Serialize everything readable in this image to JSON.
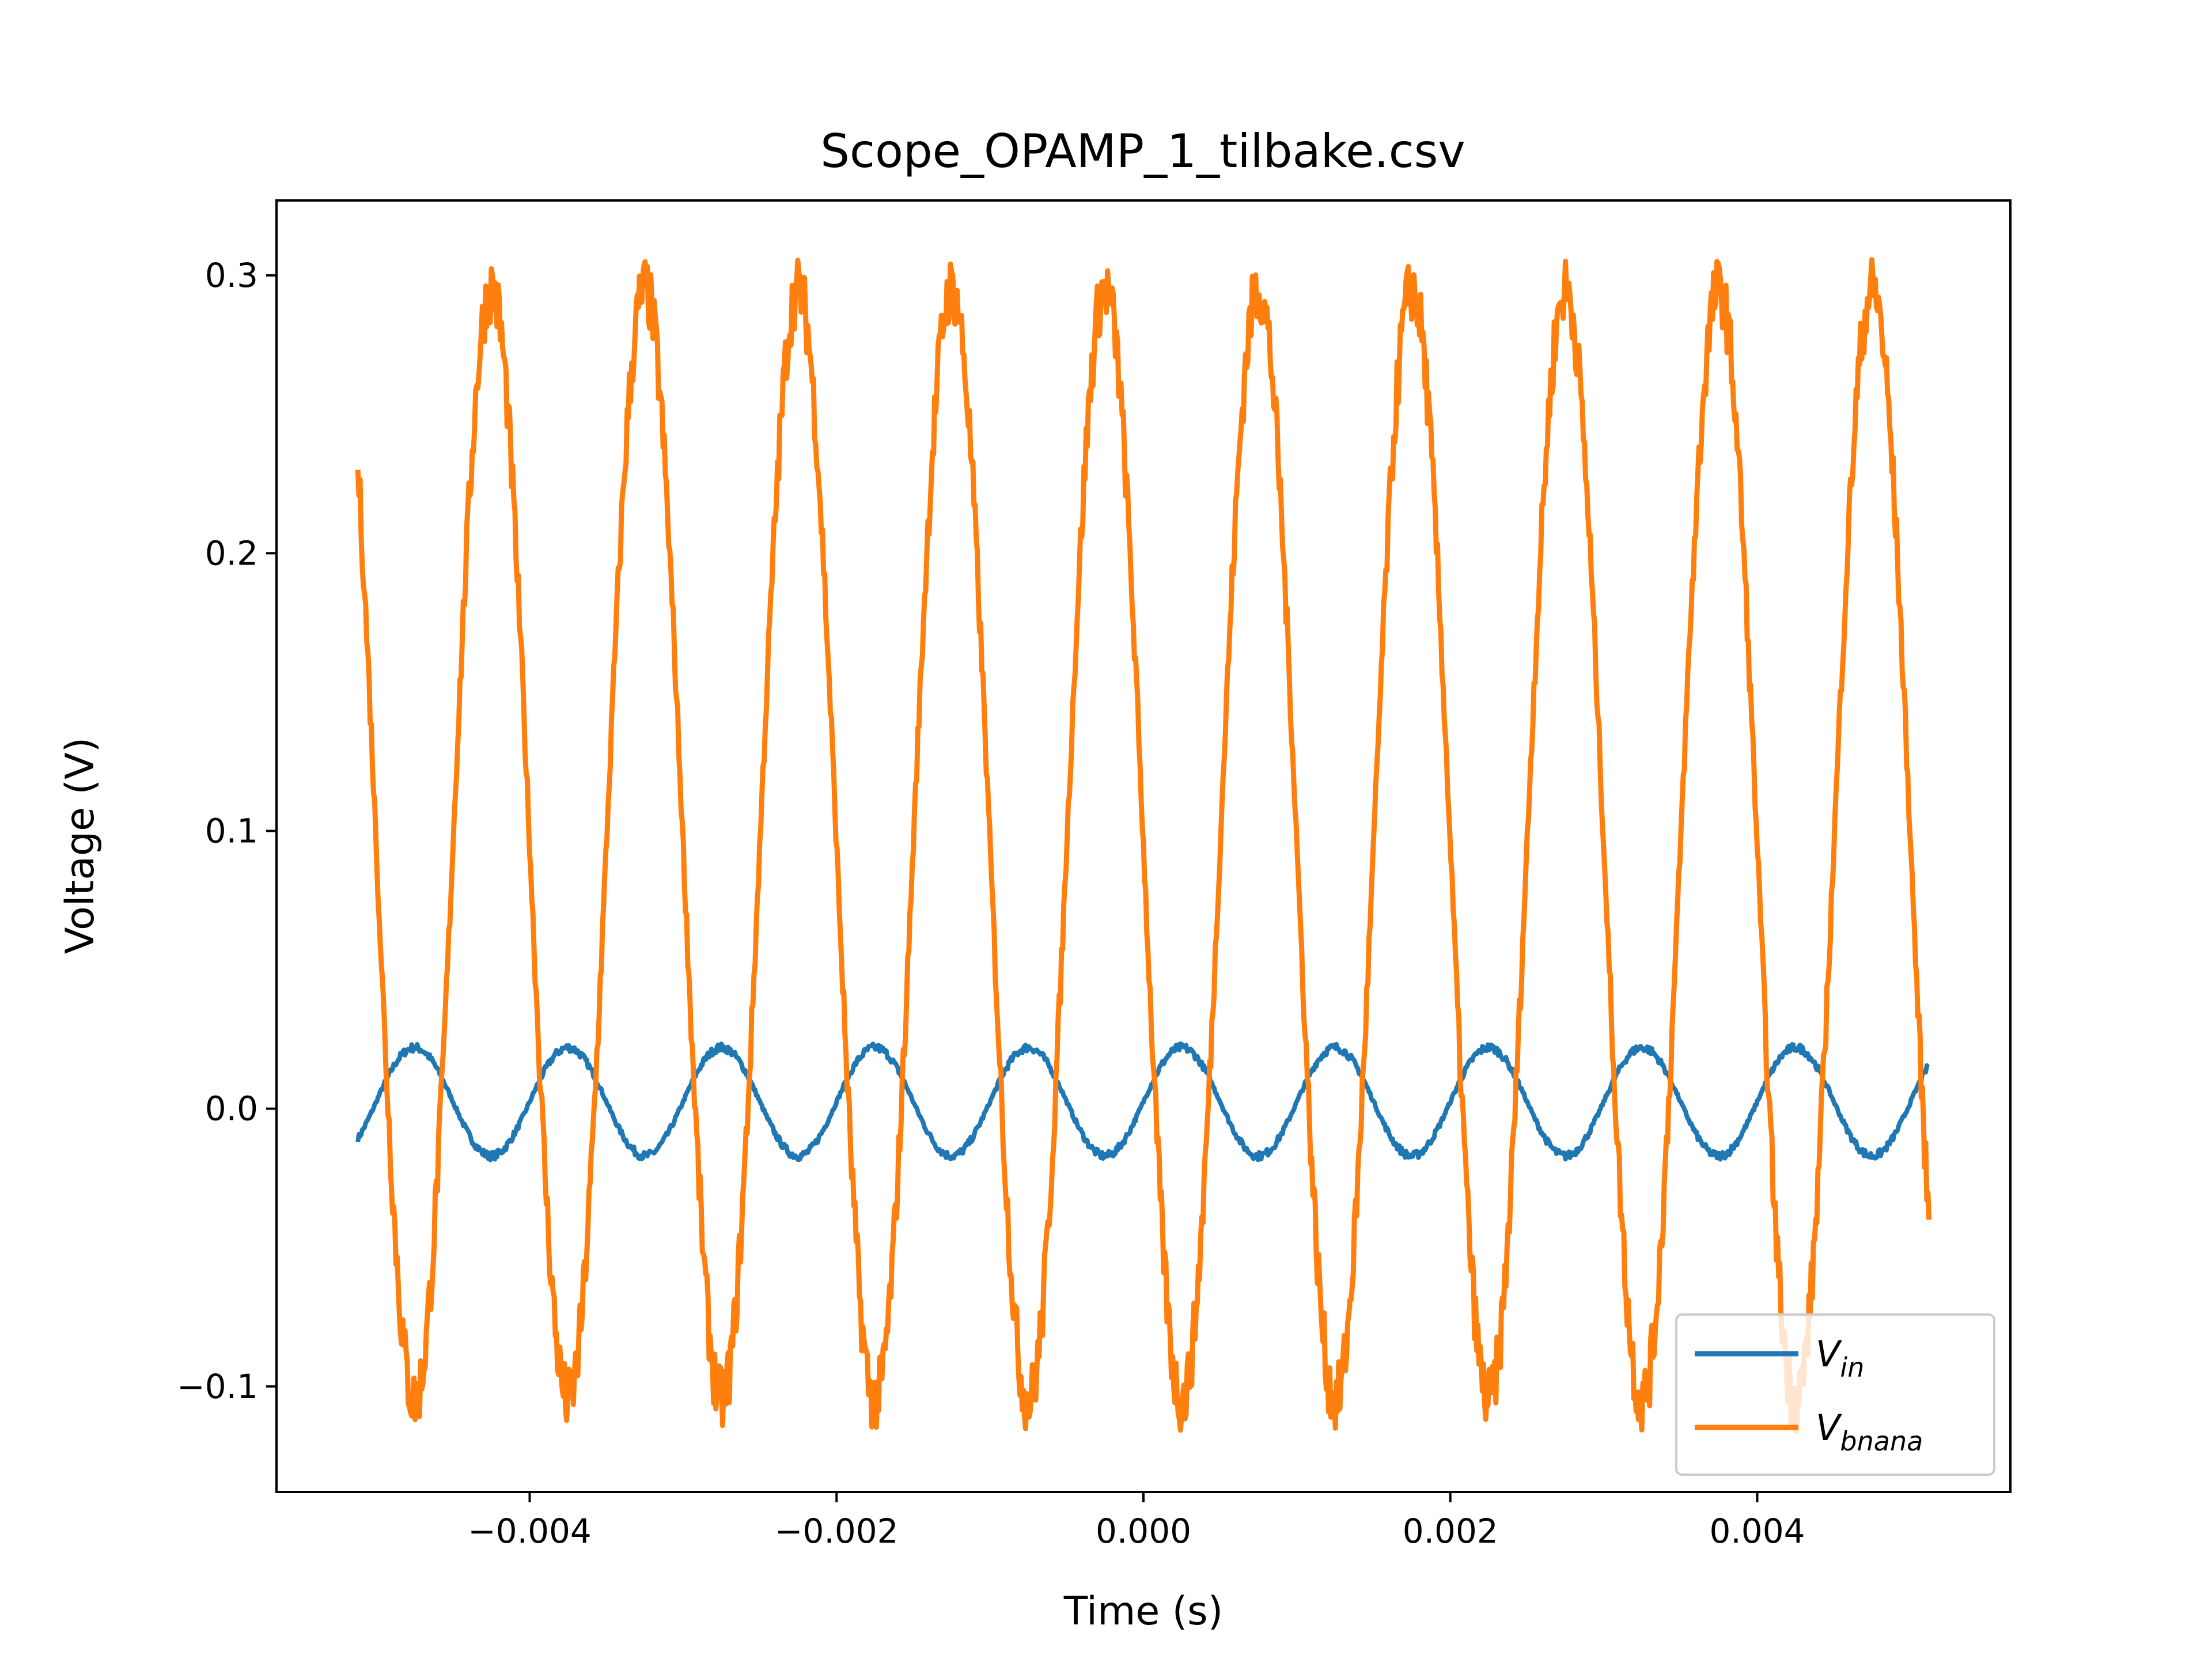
{
  "chart_data": {
    "type": "line",
    "title": "Scope_OPAMP_1_tilbake.csv",
    "xlabel": "Time (s)",
    "ylabel": "Voltage (V)",
    "xlim": [
      -0.00565,
      0.00565
    ],
    "ylim": [
      -0.138,
      0.327
    ],
    "xticks": [
      -0.004,
      -0.002,
      0.0,
      0.002,
      0.004
    ],
    "xtick_labels": [
      "−0.004",
      "−0.002",
      "0.000",
      "0.002",
      "0.004"
    ],
    "yticks": [
      -0.1,
      0.0,
      0.1,
      0.2,
      0.3
    ],
    "ytick_labels": [
      "−0.1",
      "0.0",
      "0.1",
      "0.2",
      "0.3"
    ],
    "grid": false,
    "legend_position": "lower right",
    "x_range": [
      -0.00512,
      0.00512
    ],
    "frequency_hz": 1000,
    "series": [
      {
        "name": "V_in",
        "legend_main": "V",
        "legend_sub": "in",
        "color": "#1f77b4",
        "offset": 0.0025,
        "amplitude": 0.0195,
        "peaks": [
          -0.00475,
          -0.00375,
          -0.00275,
          -0.00175,
          -0.00075,
          0.00025,
          0.00125,
          0.00225,
          0.00325,
          0.00425
        ],
        "start_value": -0.012,
        "end_value": 0.015,
        "noise": 0.0015
      },
      {
        "name": "V_bnana",
        "legend_main": "V",
        "legend_sub": "bnana",
        "color": "#ff7f0e",
        "offset": 0.095,
        "amplitude": 0.2,
        "peaks": [
          -0.00425,
          -0.00325,
          -0.00225,
          -0.00125,
          -0.00025,
          0.00075,
          0.00175,
          0.00275,
          0.00375,
          0.00475
        ],
        "troughs": [
          -0.00475,
          -0.00375,
          -0.00275,
          -0.00175,
          -0.00075,
          0.00025,
          0.00125,
          0.00225,
          0.00325,
          0.00425
        ],
        "start_value": 0.23,
        "end_value": -0.04,
        "noise": 0.012
      }
    ]
  }
}
